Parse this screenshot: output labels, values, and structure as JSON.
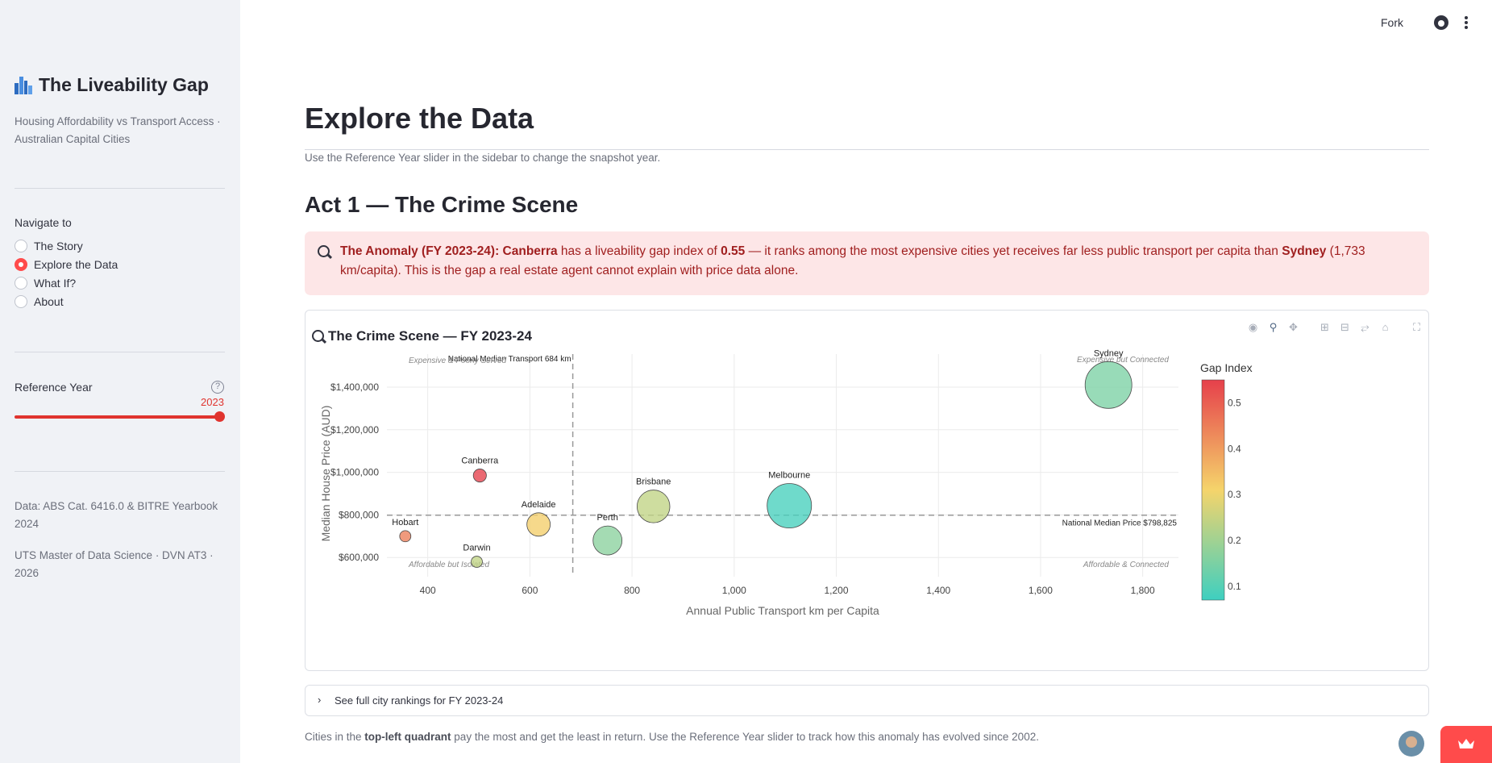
{
  "sidebar": {
    "title": "The Liveability Gap",
    "subtitle": "Housing Affordability vs Transport Access · Australian Capital Cities",
    "nav_label": "Navigate to",
    "nav_items": [
      {
        "label": "The Story",
        "selected": false
      },
      {
        "label": "Explore the Data",
        "selected": true
      },
      {
        "label": "What If?",
        "selected": false
      },
      {
        "label": "About",
        "selected": false
      }
    ],
    "ref_year_label": "Reference Year",
    "ref_year_value": "2023",
    "ref_year_fraction": 1.0,
    "help_icon": "question-icon",
    "data_source": "Data: ABS Cat. 6416.0 & BITRE Yearbook 2024",
    "credit": "UTS Master of Data Science · DVN AT3 · 2026"
  },
  "topbar": {
    "fork_label": "Fork",
    "github_icon": "github-icon",
    "menu_icon": "kebab-menu-icon"
  },
  "main": {
    "title": "Explore the Data",
    "caption": "Use the Reference Year slider in the sidebar to change the snapshot year.",
    "act_title": "Act 1 — The Crime Scene",
    "alert": {
      "icon": "magnifier-icon",
      "lead": "The Anomaly (FY 2023-24): Canberra",
      "t1": " has a liveability gap index of ",
      "gap_value": "0.55",
      "t2": " — it ranks among the most expensive cities yet receives far less public transport per capita than ",
      "compare_city": "Sydney",
      "t3": " (1,733 km/capita). This is the gap a real estate agent cannot explain with price data alone."
    },
    "chart_title": "The Crime Scene — FY 2023-24",
    "modebar": [
      "camera-icon",
      "zoom-icon",
      "pan-icon",
      "zoom-in-icon",
      "zoom-out-icon",
      "autoscale-icon",
      "home-icon",
      "fullscreen-icon"
    ],
    "expander_label": "See full city rankings for FY 2023-24",
    "bottom_note_pre": "Cities in the ",
    "bottom_note_bold": "top-left quadrant",
    "bottom_note_post": " pay the most and get the least in return. Use the Reference Year slider to track how this anomaly has evolved since 2002."
  },
  "chart_data": {
    "type": "scatter",
    "xlabel": "Annual Public Transport km per Capita",
    "ylabel": "Median House Price (AUD)",
    "xlim": [
      320,
      1870
    ],
    "ylim": [
      510000,
      1555000
    ],
    "xticks": [
      400,
      600,
      800,
      1000,
      1200,
      1400,
      1600,
      1800
    ],
    "xtick_labels": [
      "400",
      "600",
      "800",
      "1,000",
      "1,200",
      "1,400",
      "1,600",
      "1,800"
    ],
    "yticks": [
      600000,
      800000,
      1000000,
      1200000,
      1400000
    ],
    "ytick_labels": [
      "$600,000",
      "$800,000",
      "$1,000,000",
      "$1,200,000",
      "$1,400,000"
    ],
    "grid": true,
    "colorbar": {
      "title": "Gap Index",
      "min": 0.07,
      "max": 0.55,
      "ticks": [
        0.1,
        0.2,
        0.3,
        0.4,
        0.5
      ],
      "tick_labels": [
        "0.1",
        "0.2",
        "0.3",
        "0.4",
        "0.5"
      ]
    },
    "points": [
      {
        "city": "Sydney",
        "x": 1733,
        "y": 1410000,
        "gap": 0.15,
        "size": 1.0
      },
      {
        "city": "Melbourne",
        "x": 1108,
        "y": 843000,
        "gap": 0.08,
        "size": 0.95
      },
      {
        "city": "Brisbane",
        "x": 842,
        "y": 840000,
        "gap": 0.24,
        "size": 0.7
      },
      {
        "city": "Perth",
        "x": 752,
        "y": 680000,
        "gap": 0.17,
        "size": 0.62
      },
      {
        "city": "Adelaide",
        "x": 617,
        "y": 755000,
        "gap": 0.32,
        "size": 0.5
      },
      {
        "city": "Canberra",
        "x": 502,
        "y": 985000,
        "gap": 0.55,
        "size": 0.28
      },
      {
        "city": "Hobart",
        "x": 356,
        "y": 700000,
        "gap": 0.45,
        "size": 0.24
      },
      {
        "city": "Darwin",
        "x": 496,
        "y": 580000,
        "gap": 0.24,
        "size": 0.24
      }
    ],
    "median_transport": {
      "label": "National Median Transport  684 km",
      "value": 684
    },
    "median_price": {
      "label": "National Median Price  $798,825",
      "value": 798825
    },
    "quadrant_labels": {
      "top_left": "Expensive & Poorly Served",
      "top_right": "Expensive but Connected",
      "bottom_left": "Affordable but Isolated",
      "bottom_right": "Affordable & Connected"
    },
    "colors": {
      "low": "#3ecfc0",
      "mid": "#f5d46b",
      "high": "#e6404b"
    }
  }
}
